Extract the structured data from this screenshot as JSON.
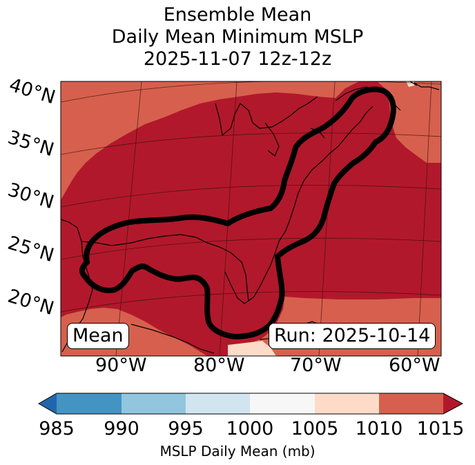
{
  "title": {
    "line1": "Ensemble Mean",
    "line2": "Daily Mean Minimum MSLP",
    "line3": "2025-11-07 12z-12z"
  },
  "map": {
    "lat_labels": [
      "40°N",
      "35°N",
      "30°N",
      "25°N",
      "20°N"
    ],
    "lon_labels": [
      "90°W",
      "80°W",
      "70°W",
      "60°W"
    ],
    "annotation_left": "Mean",
    "annotation_right": "Run: 2025-10-14",
    "contour_description": "Ensemble mean low-pressure contour from Gulf of Mexico to Nova Scotia",
    "fill_colors": {
      "below_1010": "#b2182b",
      "1010_1015": "#d6604d",
      "1005_1010": "#fddbc7",
      "land_outline": "#000000",
      "contour": "#000000"
    }
  },
  "colorbar": {
    "label": "MSLP Daily Mean (mb)",
    "ticks": [
      "985",
      "990",
      "995",
      "1000",
      "1005",
      "1010",
      "1015"
    ],
    "colors": [
      "#2166ac",
      "#4393c3",
      "#92c5de",
      "#d1e5f0",
      "#f7f7f7",
      "#fddbc7",
      "#d6604d",
      "#b2182b"
    ],
    "extend": "both"
  }
}
